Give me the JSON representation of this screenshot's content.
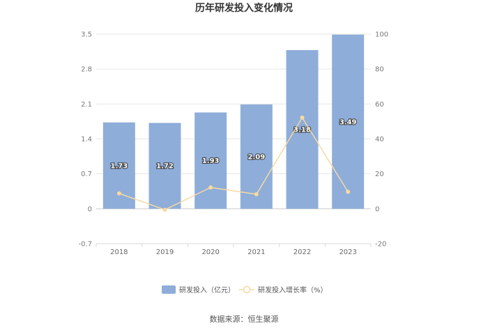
{
  "chart_data": {
    "type": "bar",
    "title": "历年研发投入变化情况",
    "categories": [
      "2018",
      "2019",
      "2020",
      "2021",
      "2022",
      "2023"
    ],
    "series": [
      {
        "name": "研发投入（亿元）",
        "type": "bar",
        "axis": "left",
        "color": "#8eadd9",
        "values": [
          1.73,
          1.72,
          1.93,
          2.09,
          3.18,
          3.49
        ],
        "labels": [
          "1.73",
          "1.72",
          "1.93",
          "2.09",
          "3.18",
          "3.49"
        ]
      },
      {
        "name": "研发投入增长率（%）",
        "type": "line",
        "axis": "right",
        "color": "#f7d9a0",
        "values": [
          8.8,
          -0.6,
          12.2,
          8.3,
          52.2,
          9.7
        ]
      }
    ],
    "y_left": {
      "ylim": [
        -0.7,
        3.5
      ],
      "ticks": [
        "-0.7",
        "0",
        "0.7",
        "1.4",
        "2.1",
        "2.8",
        "3.5"
      ]
    },
    "y_right": {
      "ylim": [
        -20,
        100
      ],
      "ticks": [
        "-20",
        "0",
        "20",
        "40",
        "60",
        "80",
        "100"
      ]
    },
    "grid": true,
    "legend_position": "bottom"
  },
  "source_text": "数据来源：恒生聚源"
}
